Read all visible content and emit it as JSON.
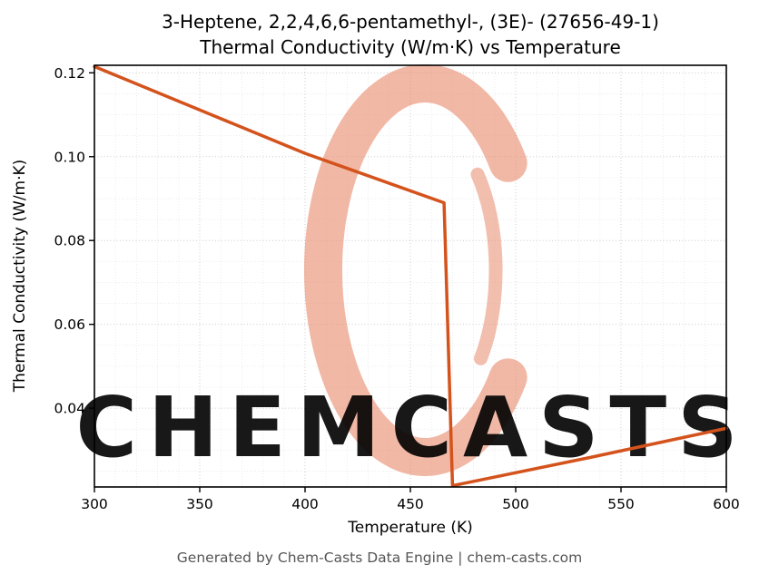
{
  "page": {
    "footer": "Generated by Chem-Casts Data Engine | chem-casts.com"
  },
  "watermark": {
    "text": "CHEMCASTS",
    "text_color": "#f0a78e",
    "logo_color": "#e8886a"
  },
  "chart_data": {
    "type": "line",
    "title": "3-Heptene, 2,2,4,6,6-pentamethyl-, (3E)- (27656-49-1)",
    "subtitle": "Thermal Conductivity (W/m·K) vs Temperature",
    "compound_name": "3-Heptene, 2,2,4,6,6-pentamethyl-, (3E)-",
    "cas_number": "27656-49-1",
    "xlabel": "Temperature (K)",
    "ylabel": "Thermal Conductivity (W/m·K)",
    "xlim": [
      300,
      600
    ],
    "ylim": [
      0.0212,
      0.1218
    ],
    "x_ticks": [
      300,
      350,
      400,
      450,
      500,
      550,
      600
    ],
    "x_tick_labels": [
      "300",
      "350",
      "400",
      "450",
      "500",
      "550",
      "600"
    ],
    "y_ticks": [
      0.04,
      0.06,
      0.08,
      0.1,
      0.12
    ],
    "y_tick_labels": [
      "0.04",
      "0.06",
      "0.08",
      "0.10",
      "0.12"
    ],
    "grid": true,
    "minor_grid": true,
    "legend": "none",
    "line_color": "#d4531d",
    "line_width": 3.5,
    "series": [
      {
        "name": "thermal_conductivity",
        "points": [
          [
            300,
            0.1215
          ],
          [
            400,
            0.1008
          ],
          [
            466,
            0.089
          ],
          [
            470,
            0.0215
          ],
          [
            535,
            0.0282
          ],
          [
            600,
            0.0352
          ]
        ]
      }
    ]
  }
}
